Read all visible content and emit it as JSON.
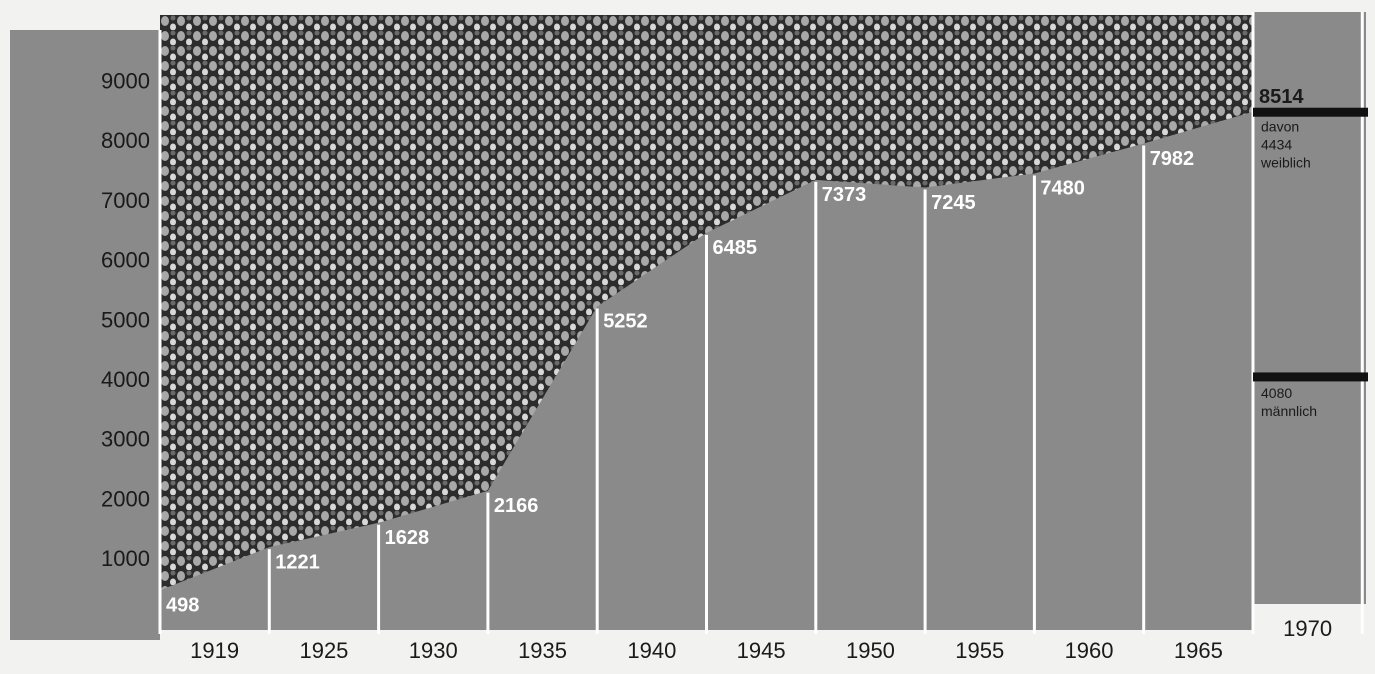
{
  "chart_data": {
    "type": "area",
    "categories": [
      "1919",
      "1925",
      "1930",
      "1935",
      "1940",
      "1945",
      "1950",
      "1955",
      "1960",
      "1965",
      "1970"
    ],
    "values": [
      498,
      1221,
      1628,
      2166,
      5252,
      6485,
      7373,
      7245,
      7480,
      7982,
      8514
    ],
    "ylim": [
      0,
      10000
    ],
    "yticks": [
      1000,
      2000,
      3000,
      4000,
      5000,
      6000,
      7000,
      8000,
      9000
    ],
    "color": "#8a8a8a",
    "breakdown": {
      "intro": "davon",
      "female": {
        "value": 4434,
        "label": "weiblich"
      },
      "male": {
        "value": 4080,
        "label": "männlich"
      }
    }
  }
}
